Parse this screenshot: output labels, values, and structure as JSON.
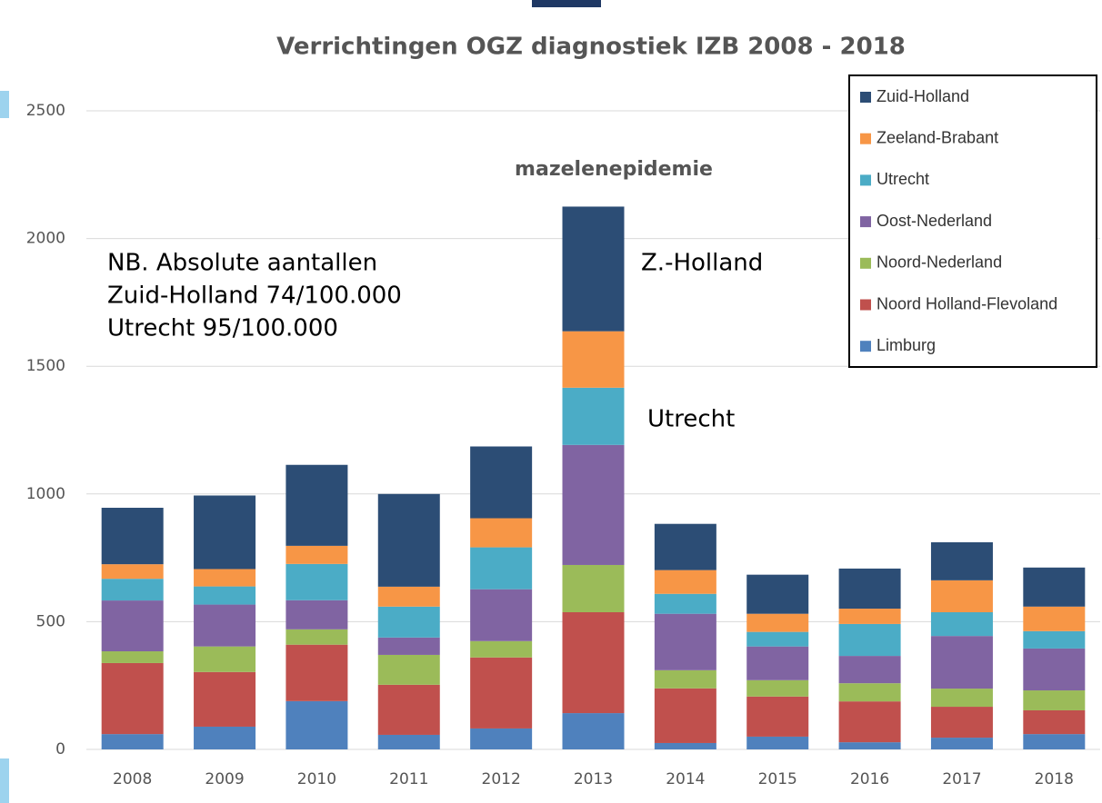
{
  "chart_data": {
    "type": "stacked_bar",
    "title": "Verrichtingen OGZ diagnostiek IZB 2008 - 2018",
    "categories": [
      "2008",
      "2009",
      "2010",
      "2011",
      "2012",
      "2013",
      "2014",
      "2015",
      "2016",
      "2017",
      "2018"
    ],
    "series": [
      {
        "name": "Limburg",
        "color": "#4f81bd",
        "values": [
          60,
          89,
          189,
          57,
          82,
          142,
          25,
          50,
          28,
          46,
          60
        ]
      },
      {
        "name": "Noord Holland-Flevoland",
        "color": "#c0504d",
        "values": [
          278,
          214,
          221,
          196,
          278,
          395,
          214,
          157,
          160,
          121,
          93
        ]
      },
      {
        "name": "Noord-Nederland",
        "color": "#9bbb59",
        "values": [
          46,
          100,
          60,
          117,
          64,
          185,
          71,
          64,
          71,
          71,
          78
        ]
      },
      {
        "name": "Oost-Nederland",
        "color": "#8064a2",
        "values": [
          199,
          164,
          114,
          68,
          203,
          470,
          221,
          132,
          107,
          206,
          164
        ]
      },
      {
        "name": "Utrecht",
        "color": "#4bacc6",
        "values": [
          85,
          71,
          142,
          121,
          164,
          224,
          78,
          57,
          125,
          93,
          68
        ]
      },
      {
        "name": "Zeeland-Brabant",
        "color": "#f79646",
        "values": [
          57,
          68,
          71,
          78,
          114,
          221,
          93,
          71,
          60,
          125,
          96
        ]
      },
      {
        "name": "Zuid-Holland",
        "color": "#2c4d75",
        "values": [
          221,
          288,
          317,
          363,
          281,
          488,
          181,
          153,
          157,
          149,
          153
        ]
      }
    ],
    "ylim": [
      0,
      2500
    ],
    "yticks": [
      0,
      500,
      1000,
      1500,
      2000,
      2500
    ],
    "grid": true,
    "legend": "top-right",
    "annotations": [
      "mazelenepidemie",
      "Z.-Holland",
      "Utrecht"
    ],
    "note": [
      "NB. Absolute aantallen",
      "Zuid-Holland 74/100.000",
      "Utrecht 95/100.000"
    ]
  }
}
